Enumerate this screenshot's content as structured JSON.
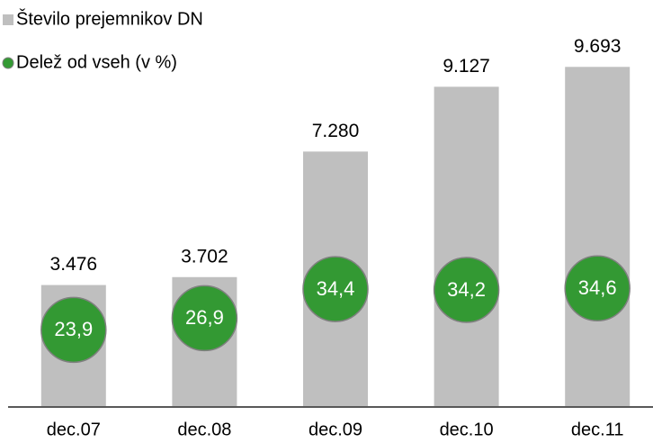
{
  "chart_data": {
    "type": "bar",
    "categories": [
      "dec.07",
      "dec.08",
      "dec.09",
      "dec.10",
      "dec.11"
    ],
    "series": [
      {
        "name": "Število prejemnikov DN",
        "type": "bar",
        "color": "#bfbfbf",
        "values": [
          3476,
          3702,
          7280,
          9127,
          9693
        ],
        "value_labels": [
          "3.476",
          "3.702",
          "7.280",
          "9.127",
          "9.693"
        ]
      },
      {
        "name": "Delež od vseh (v %)",
        "type": "scatter",
        "axis": "y2",
        "color": "#339933",
        "values": [
          23.9,
          26.9,
          34.4,
          34.2,
          34.6
        ],
        "value_labels": [
          "23,9",
          "26,9",
          "34,4",
          "34,2",
          "34,6"
        ]
      }
    ],
    "ylim": [
      0,
      11600
    ],
    "y2lim": [
      4,
      109
    ]
  }
}
